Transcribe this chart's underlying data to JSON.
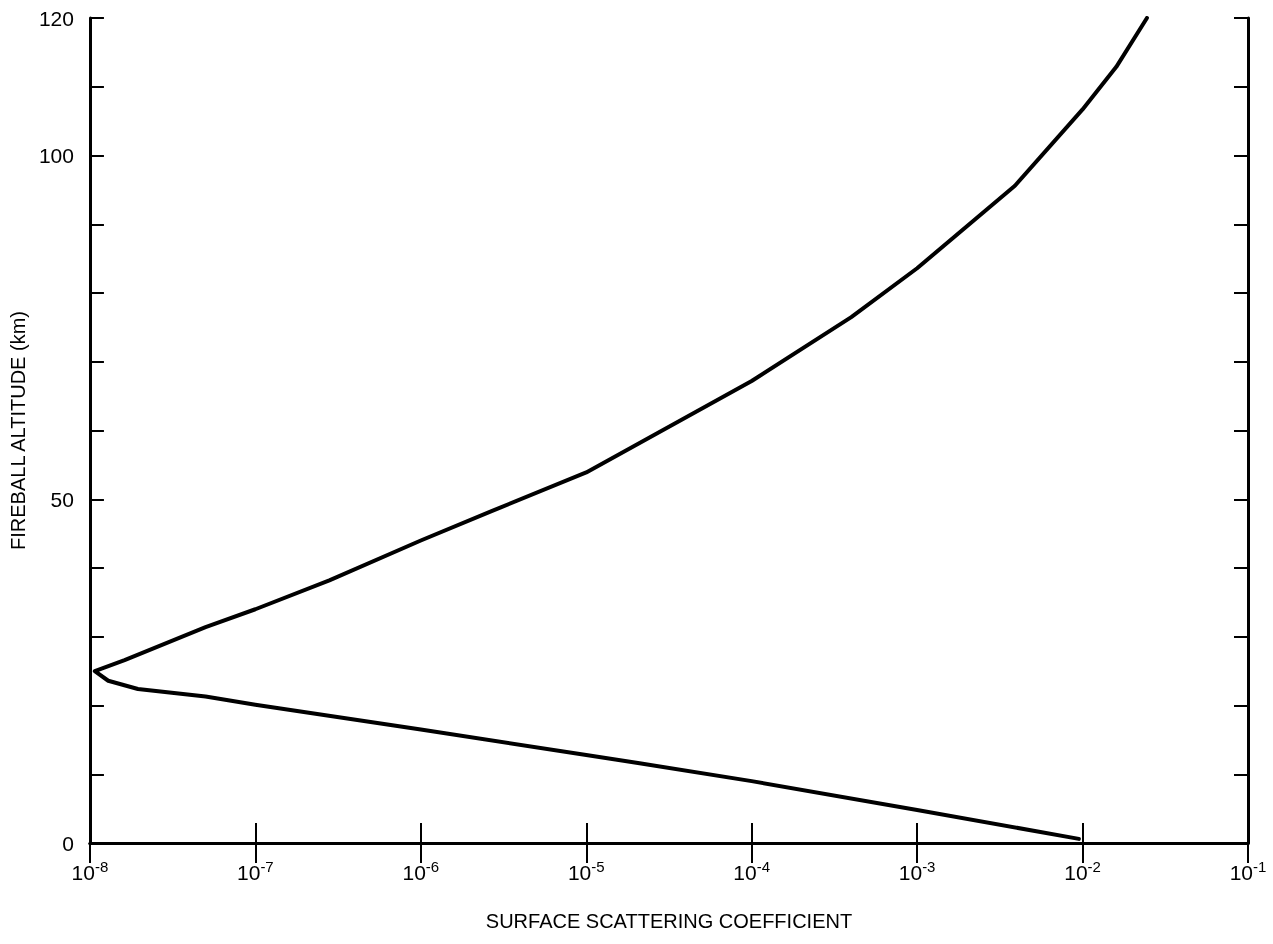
{
  "chart_data": {
    "type": "line",
    "xlabel": "SURFACE SCATTERING COEFFICIENT",
    "ylabel": "FIREBALL ALTITUDE (km)",
    "log": "x",
    "grid": false,
    "marker": "none",
    "line_style": "solid",
    "xlim": [
      1e-08,
      0.1
    ],
    "ylim": [
      0,
      120
    ],
    "xticks": [
      {
        "value": 1e-08,
        "label": "10$^{-8}$"
      },
      {
        "value": 1e-07,
        "label": "10$^{-7}$"
      },
      {
        "value": 1e-06,
        "label": "10$^{-6}$"
      },
      {
        "value": 1e-05,
        "label": "10$^{-5}$"
      },
      {
        "value": 0.0001,
        "label": "10$^{-4}$"
      },
      {
        "value": 0.001,
        "label": "10$^{-3}$"
      },
      {
        "value": 0.01,
        "label": "10$^{-2}$"
      },
      {
        "value": 0.1,
        "label": "10$^{-1}$"
      }
    ],
    "yticks": [
      0,
      {
        "value": 10,
        "label": null
      },
      {
        "value": 20,
        "label": null
      },
      {
        "value": 30,
        "label": null
      },
      {
        "value": 40,
        "label": null
      },
      50,
      {
        "value": 60,
        "label": null
      },
      {
        "value": 70,
        "label": null
      },
      {
        "value": 80,
        "label": null
      },
      {
        "value": 90,
        "label": null
      },
      100,
      {
        "value": 110,
        "label": null
      },
      120
    ],
    "series": [
      {
        "color": "#000000",
        "x": [
          0.0095,
          0.001,
          0.0001,
          2.1e-05,
          1e-05,
          1e-06,
          1e-07,
          5e-08,
          1.95e-08,
          1.29e-08,
          1.07e-08,
          1.62e-08,
          5e-08,
          1e-07,
          2.8e-07,
          1e-06,
          2.7e-06,
          1e-05,
          1.9e-05,
          0.0001,
          0.0004,
          0.001,
          0.0039,
          0.01,
          0.016,
          0.0245
        ],
        "values": [
          0.6,
          4.8,
          9,
          11.6,
          12.8,
          16.5,
          20.1,
          21.3,
          22.4,
          23.6,
          25,
          26.6,
          31.4,
          34,
          38.2,
          44,
          48.3,
          53.9,
          57.6,
          67.2,
          76.5,
          83.6,
          95.6,
          106.7,
          112.9,
          120
        ]
      }
    ]
  }
}
